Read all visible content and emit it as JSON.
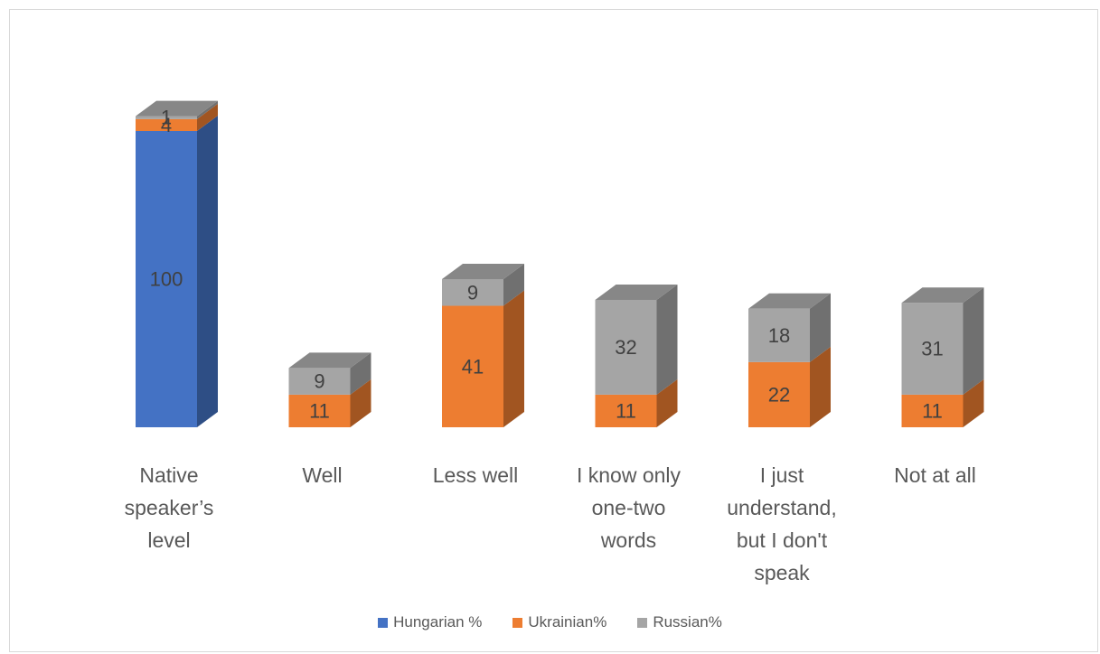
{
  "chart_data": {
    "type": "bar",
    "stacked": true,
    "three_d": true,
    "title": "",
    "xlabel": "",
    "ylabel": "",
    "grid": false,
    "legend_position": "bottom",
    "categories": [
      "Native speaker’s level",
      "Well",
      "Less well",
      "I know only one-two words",
      "I just understand, but I don't speak",
      "Not at all"
    ],
    "category_lines": [
      [
        "Native",
        "speaker’s",
        "level"
      ],
      [
        "Well"
      ],
      [
        "Less well"
      ],
      [
        "I know only",
        "one-two",
        "words"
      ],
      [
        "I just",
        "understand,",
        "but I don't",
        "speak"
      ],
      [
        "Not at all"
      ]
    ],
    "series": [
      {
        "name": "Hungarian %",
        "color": "#4472C4",
        "values": [
          100,
          null,
          null,
          null,
          null,
          null
        ]
      },
      {
        "name": "Ukrainian%",
        "color": "#ED7D31",
        "values": [
          4,
          11,
          41,
          11,
          22,
          11
        ]
      },
      {
        "name": "Russian%",
        "color": "#A5A5A5",
        "values": [
          1,
          9,
          9,
          32,
          18,
          31
        ]
      }
    ]
  }
}
